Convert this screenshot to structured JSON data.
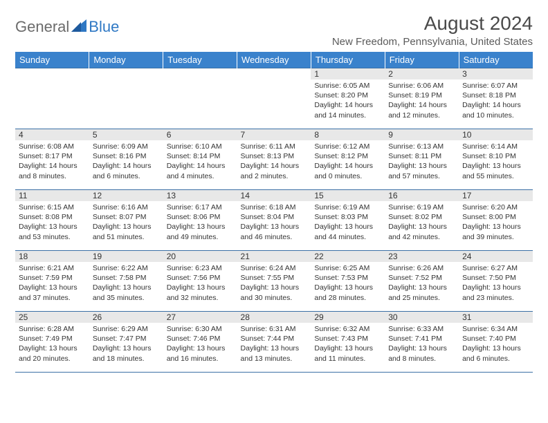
{
  "logo": {
    "part1": "General",
    "part2": "Blue"
  },
  "title": "August 2024",
  "location": "New Freedom, Pennsylvania, United States",
  "colors": {
    "header_bg": "#3a82cc",
    "header_text": "#ffffff",
    "daynum_bg": "#e8e8e8",
    "border": "#3a6fa5",
    "logo_gray": "#6b6b6b",
    "logo_blue": "#2f78c4"
  },
  "weekdays": [
    "Sunday",
    "Monday",
    "Tuesday",
    "Wednesday",
    "Thursday",
    "Friday",
    "Saturday"
  ],
  "weeks": [
    [
      null,
      null,
      null,
      null,
      {
        "d": "1",
        "sr": "6:05 AM",
        "ss": "8:20 PM",
        "dl": "14 hours and 14 minutes."
      },
      {
        "d": "2",
        "sr": "6:06 AM",
        "ss": "8:19 PM",
        "dl": "14 hours and 12 minutes."
      },
      {
        "d": "3",
        "sr": "6:07 AM",
        "ss": "8:18 PM",
        "dl": "14 hours and 10 minutes."
      }
    ],
    [
      {
        "d": "4",
        "sr": "6:08 AM",
        "ss": "8:17 PM",
        "dl": "14 hours and 8 minutes."
      },
      {
        "d": "5",
        "sr": "6:09 AM",
        "ss": "8:16 PM",
        "dl": "14 hours and 6 minutes."
      },
      {
        "d": "6",
        "sr": "6:10 AM",
        "ss": "8:14 PM",
        "dl": "14 hours and 4 minutes."
      },
      {
        "d": "7",
        "sr": "6:11 AM",
        "ss": "8:13 PM",
        "dl": "14 hours and 2 minutes."
      },
      {
        "d": "8",
        "sr": "6:12 AM",
        "ss": "8:12 PM",
        "dl": "14 hours and 0 minutes."
      },
      {
        "d": "9",
        "sr": "6:13 AM",
        "ss": "8:11 PM",
        "dl": "13 hours and 57 minutes."
      },
      {
        "d": "10",
        "sr": "6:14 AM",
        "ss": "8:10 PM",
        "dl": "13 hours and 55 minutes."
      }
    ],
    [
      {
        "d": "11",
        "sr": "6:15 AM",
        "ss": "8:08 PM",
        "dl": "13 hours and 53 minutes."
      },
      {
        "d": "12",
        "sr": "6:16 AM",
        "ss": "8:07 PM",
        "dl": "13 hours and 51 minutes."
      },
      {
        "d": "13",
        "sr": "6:17 AM",
        "ss": "8:06 PM",
        "dl": "13 hours and 49 minutes."
      },
      {
        "d": "14",
        "sr": "6:18 AM",
        "ss": "8:04 PM",
        "dl": "13 hours and 46 minutes."
      },
      {
        "d": "15",
        "sr": "6:19 AM",
        "ss": "8:03 PM",
        "dl": "13 hours and 44 minutes."
      },
      {
        "d": "16",
        "sr": "6:19 AM",
        "ss": "8:02 PM",
        "dl": "13 hours and 42 minutes."
      },
      {
        "d": "17",
        "sr": "6:20 AM",
        "ss": "8:00 PM",
        "dl": "13 hours and 39 minutes."
      }
    ],
    [
      {
        "d": "18",
        "sr": "6:21 AM",
        "ss": "7:59 PM",
        "dl": "13 hours and 37 minutes."
      },
      {
        "d": "19",
        "sr": "6:22 AM",
        "ss": "7:58 PM",
        "dl": "13 hours and 35 minutes."
      },
      {
        "d": "20",
        "sr": "6:23 AM",
        "ss": "7:56 PM",
        "dl": "13 hours and 32 minutes."
      },
      {
        "d": "21",
        "sr": "6:24 AM",
        "ss": "7:55 PM",
        "dl": "13 hours and 30 minutes."
      },
      {
        "d": "22",
        "sr": "6:25 AM",
        "ss": "7:53 PM",
        "dl": "13 hours and 28 minutes."
      },
      {
        "d": "23",
        "sr": "6:26 AM",
        "ss": "7:52 PM",
        "dl": "13 hours and 25 minutes."
      },
      {
        "d": "24",
        "sr": "6:27 AM",
        "ss": "7:50 PM",
        "dl": "13 hours and 23 minutes."
      }
    ],
    [
      {
        "d": "25",
        "sr": "6:28 AM",
        "ss": "7:49 PM",
        "dl": "13 hours and 20 minutes."
      },
      {
        "d": "26",
        "sr": "6:29 AM",
        "ss": "7:47 PM",
        "dl": "13 hours and 18 minutes."
      },
      {
        "d": "27",
        "sr": "6:30 AM",
        "ss": "7:46 PM",
        "dl": "13 hours and 16 minutes."
      },
      {
        "d": "28",
        "sr": "6:31 AM",
        "ss": "7:44 PM",
        "dl": "13 hours and 13 minutes."
      },
      {
        "d": "29",
        "sr": "6:32 AM",
        "ss": "7:43 PM",
        "dl": "13 hours and 11 minutes."
      },
      {
        "d": "30",
        "sr": "6:33 AM",
        "ss": "7:41 PM",
        "dl": "13 hours and 8 minutes."
      },
      {
        "d": "31",
        "sr": "6:34 AM",
        "ss": "7:40 PM",
        "dl": "13 hours and 6 minutes."
      }
    ]
  ],
  "labels": {
    "sunrise": "Sunrise:",
    "sunset": "Sunset:",
    "daylight": "Daylight:"
  }
}
